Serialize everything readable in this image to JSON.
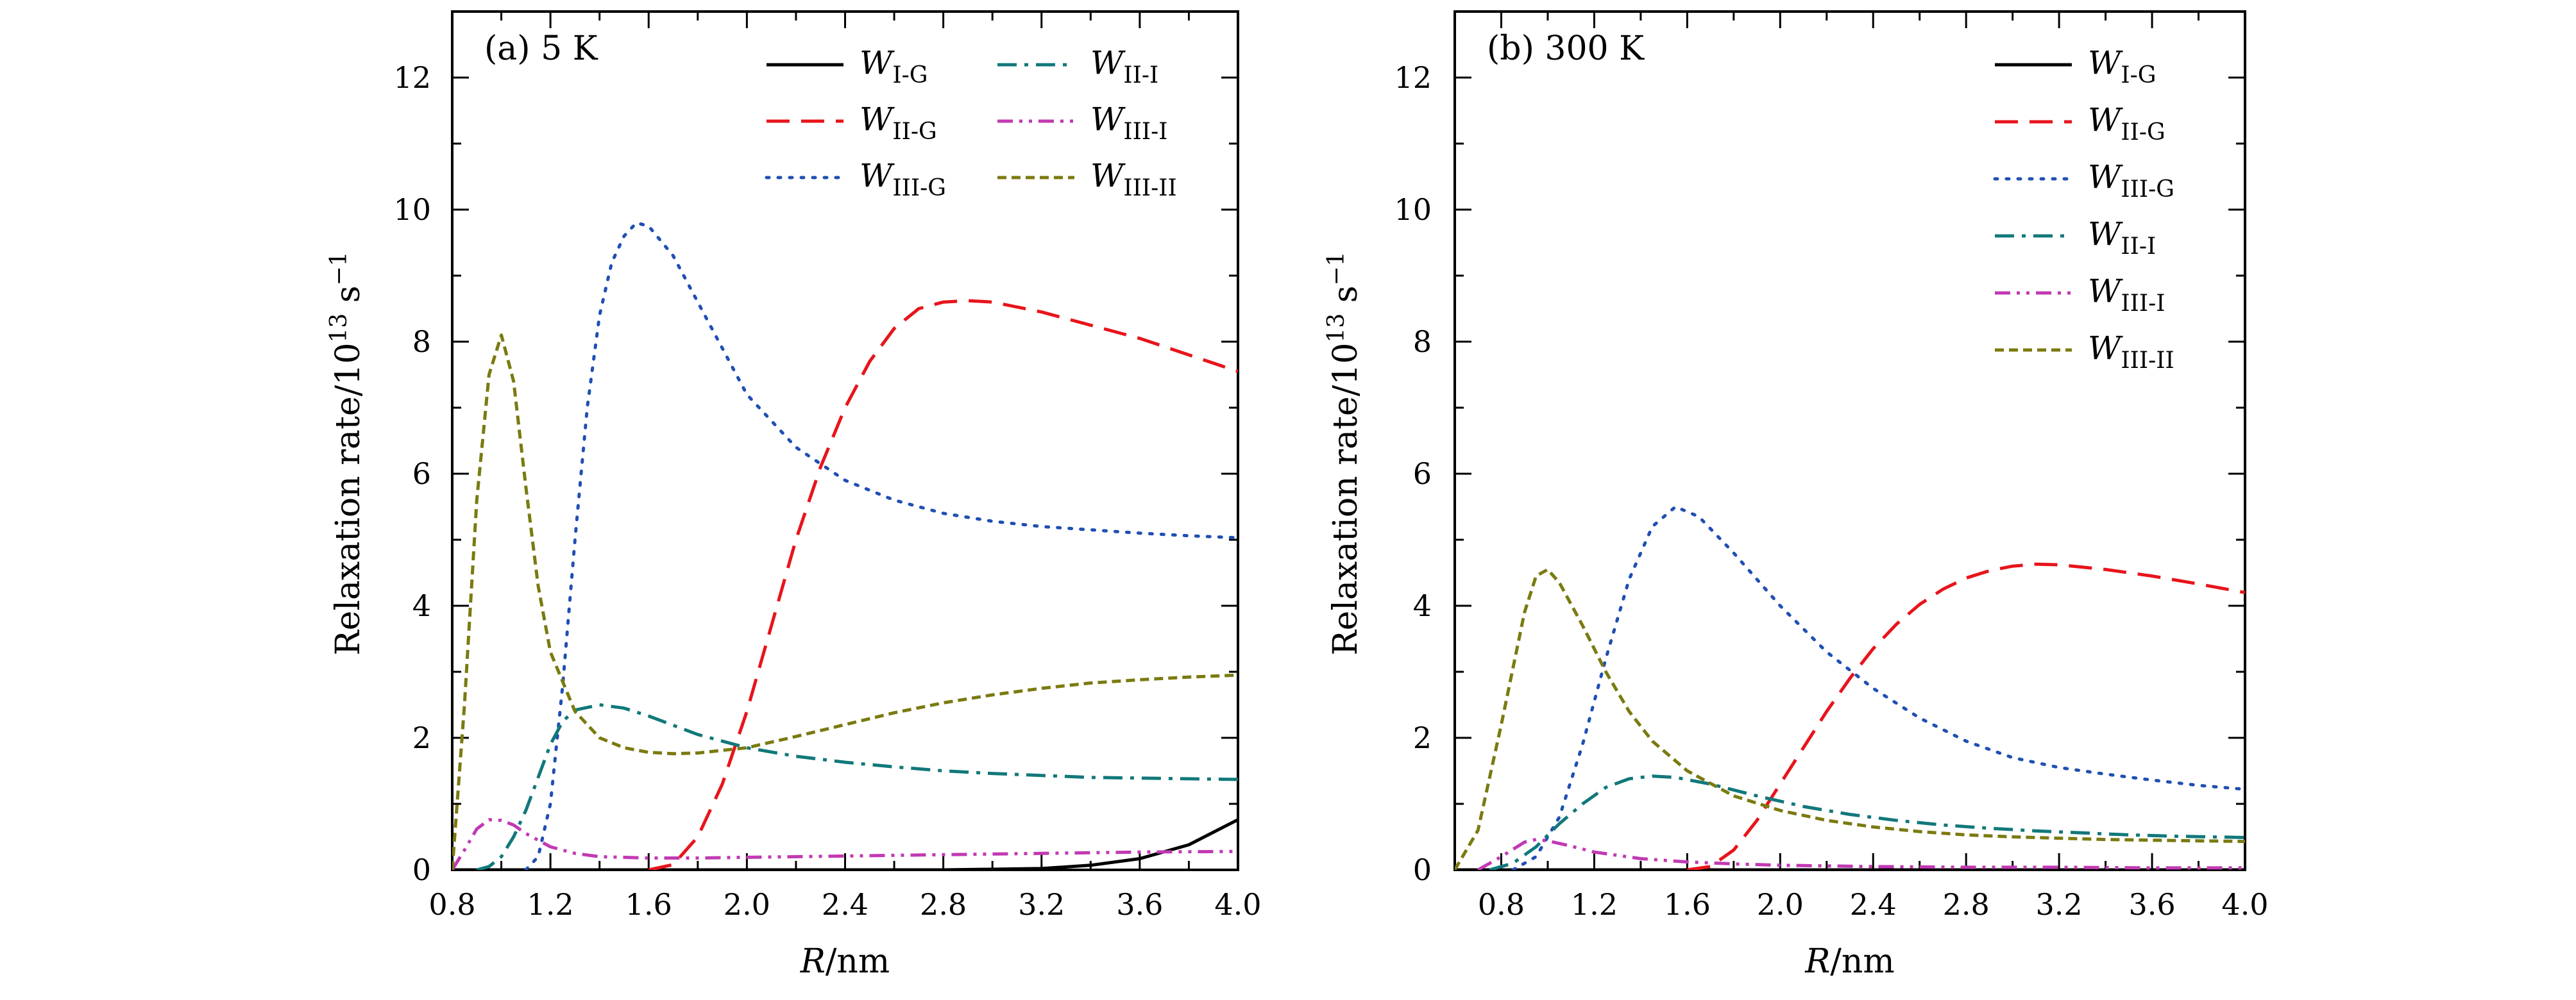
{
  "chart_data": [
    {
      "type": "line",
      "title": "(a) 5 K",
      "xlabel_var": "R",
      "xlabel_unit": "/nm",
      "ylabel_text": "Relaxation rate/10",
      "ylabel_exp": "13",
      "ylabel_unit": "s",
      "ylabel_unit_exp": "−1",
      "xlim": [
        0.8,
        4.0
      ],
      "ylim": [
        0,
        13
      ],
      "x_ticks": [
        "0.8",
        "1.2",
        "1.6",
        "2.0",
        "2.4",
        "2.8",
        "3.2",
        "3.6",
        "4.0"
      ],
      "y_ticks": [
        "0",
        "2",
        "4",
        "6",
        "8",
        "10",
        "12"
      ],
      "legend_position": "top-right, two columns",
      "series": [
        {
          "name": "W",
          "sub": "I-G",
          "color": "#000000",
          "style": "solid",
          "points": [
            [
              0.8,
              0
            ],
            [
              2.8,
              0
            ],
            [
              3.0,
              0.01
            ],
            [
              3.2,
              0.02
            ],
            [
              3.4,
              0.07
            ],
            [
              3.6,
              0.17
            ],
            [
              3.8,
              0.38
            ],
            [
              4.0,
              0.76
            ]
          ]
        },
        {
          "name": "W",
          "sub": "II-G",
          "color": "#e8141b",
          "style": "dashed",
          "points": [
            [
              1.6,
              0
            ],
            [
              1.7,
              0.08
            ],
            [
              1.8,
              0.5
            ],
            [
              1.9,
              1.3
            ],
            [
              2.0,
              2.4
            ],
            [
              2.1,
              3.7
            ],
            [
              2.2,
              5.0
            ],
            [
              2.3,
              6.1
            ],
            [
              2.4,
              7.0
            ],
            [
              2.5,
              7.7
            ],
            [
              2.6,
              8.2
            ],
            [
              2.7,
              8.5
            ],
            [
              2.8,
              8.6
            ],
            [
              2.9,
              8.62
            ],
            [
              3.0,
              8.6
            ],
            [
              3.2,
              8.45
            ],
            [
              3.4,
              8.25
            ],
            [
              3.6,
              8.05
            ],
            [
              3.8,
              7.8
            ],
            [
              4.0,
              7.55
            ]
          ]
        },
        {
          "name": "W",
          "sub": "III-G",
          "color": "#1f4fb4",
          "style": "dotted",
          "points": [
            [
              1.1,
              0
            ],
            [
              1.15,
              0.2
            ],
            [
              1.2,
              1.0
            ],
            [
              1.25,
              2.8
            ],
            [
              1.3,
              5.0
            ],
            [
              1.35,
              7.0
            ],
            [
              1.4,
              8.4
            ],
            [
              1.45,
              9.2
            ],
            [
              1.5,
              9.6
            ],
            [
              1.55,
              9.8
            ],
            [
              1.6,
              9.75
            ],
            [
              1.7,
              9.3
            ],
            [
              1.8,
              8.6
            ],
            [
              1.9,
              7.9
            ],
            [
              2.0,
              7.2
            ],
            [
              2.2,
              6.4
            ],
            [
              2.4,
              5.9
            ],
            [
              2.6,
              5.6
            ],
            [
              2.8,
              5.4
            ],
            [
              3.0,
              5.28
            ],
            [
              3.2,
              5.2
            ],
            [
              3.4,
              5.15
            ],
            [
              3.6,
              5.1
            ],
            [
              3.8,
              5.06
            ],
            [
              4.0,
              5.03
            ]
          ]
        },
        {
          "name": "W",
          "sub": "II-I",
          "color": "#11787a",
          "style": "dashdot",
          "points": [
            [
              0.9,
              0
            ],
            [
              0.95,
              0.05
            ],
            [
              1.0,
              0.2
            ],
            [
              1.05,
              0.5
            ],
            [
              1.1,
              0.9
            ],
            [
              1.15,
              1.4
            ],
            [
              1.2,
              1.9
            ],
            [
              1.25,
              2.25
            ],
            [
              1.3,
              2.42
            ],
            [
              1.4,
              2.5
            ],
            [
              1.5,
              2.45
            ],
            [
              1.6,
              2.33
            ],
            [
              1.8,
              2.05
            ],
            [
              2.0,
              1.85
            ],
            [
              2.2,
              1.72
            ],
            [
              2.4,
              1.63
            ],
            [
              2.6,
              1.56
            ],
            [
              2.8,
              1.5
            ],
            [
              3.0,
              1.46
            ],
            [
              3.2,
              1.43
            ],
            [
              3.4,
              1.4
            ],
            [
              3.6,
              1.39
            ],
            [
              3.8,
              1.38
            ],
            [
              4.0,
              1.37
            ]
          ]
        },
        {
          "name": "W",
          "sub": "III-I",
          "color": "#c239b3",
          "style": "dashdotdot",
          "points": [
            [
              0.8,
              0
            ],
            [
              0.85,
              0.3
            ],
            [
              0.9,
              0.62
            ],
            [
              0.95,
              0.76
            ],
            [
              1.0,
              0.75
            ],
            [
              1.05,
              0.68
            ],
            [
              1.1,
              0.55
            ],
            [
              1.2,
              0.35
            ],
            [
              1.3,
              0.25
            ],
            [
              1.4,
              0.2
            ],
            [
              1.6,
              0.18
            ],
            [
              1.8,
              0.18
            ],
            [
              2.0,
              0.19
            ],
            [
              2.4,
              0.21
            ],
            [
              2.8,
              0.23
            ],
            [
              3.2,
              0.25
            ],
            [
              3.6,
              0.27
            ],
            [
              4.0,
              0.28
            ]
          ]
        },
        {
          "name": "W",
          "sub": "III-II",
          "color": "#7a7a10",
          "style": "shortdash",
          "points": [
            [
              0.8,
              0
            ],
            [
              0.85,
              2.5
            ],
            [
              0.9,
              5.6
            ],
            [
              0.95,
              7.5
            ],
            [
              1.0,
              8.1
            ],
            [
              1.05,
              7.4
            ],
            [
              1.1,
              5.8
            ],
            [
              1.15,
              4.3
            ],
            [
              1.2,
              3.3
            ],
            [
              1.3,
              2.4
            ],
            [
              1.4,
              2.0
            ],
            [
              1.5,
              1.85
            ],
            [
              1.6,
              1.78
            ],
            [
              1.7,
              1.76
            ],
            [
              1.8,
              1.77
            ],
            [
              2.0,
              1.85
            ],
            [
              2.2,
              2.02
            ],
            [
              2.4,
              2.2
            ],
            [
              2.6,
              2.38
            ],
            [
              2.8,
              2.53
            ],
            [
              3.0,
              2.65
            ],
            [
              3.2,
              2.75
            ],
            [
              3.4,
              2.83
            ],
            [
              3.6,
              2.88
            ],
            [
              3.8,
              2.92
            ],
            [
              4.0,
              2.95
            ]
          ]
        }
      ]
    },
    {
      "type": "line",
      "title": "(b) 300 K",
      "xlabel_var": "R",
      "xlabel_unit": "/nm",
      "ylabel_text": "Relaxation rate/10",
      "ylabel_exp": "13",
      "ylabel_unit": "s",
      "ylabel_unit_exp": "−1",
      "xlim": [
        0.6,
        4.0
      ],
      "ylim": [
        0,
        13
      ],
      "x_ticks": [
        "0.8",
        "1.2",
        "1.6",
        "2.0",
        "2.4",
        "2.8",
        "3.2",
        "3.6",
        "4.0"
      ],
      "y_ticks": [
        "0",
        "2",
        "4",
        "6",
        "8",
        "10",
        "12"
      ],
      "legend_position": "top-right, one column",
      "series": [
        {
          "name": "W",
          "sub": "I-G",
          "color": "#000000",
          "style": "solid",
          "points": [
            [
              0.6,
              0
            ],
            [
              4.0,
              0
            ]
          ]
        },
        {
          "name": "W",
          "sub": "II-G",
          "color": "#e8141b",
          "style": "dashed",
          "points": [
            [
              1.6,
              0
            ],
            [
              1.7,
              0.05
            ],
            [
              1.8,
              0.3
            ],
            [
              1.9,
              0.75
            ],
            [
              2.0,
              1.3
            ],
            [
              2.1,
              1.85
            ],
            [
              2.2,
              2.4
            ],
            [
              2.3,
              2.9
            ],
            [
              2.4,
              3.35
            ],
            [
              2.5,
              3.72
            ],
            [
              2.6,
              4.02
            ],
            [
              2.7,
              4.25
            ],
            [
              2.8,
              4.42
            ],
            [
              2.9,
              4.53
            ],
            [
              3.0,
              4.6
            ],
            [
              3.1,
              4.63
            ],
            [
              3.2,
              4.62
            ],
            [
              3.4,
              4.55
            ],
            [
              3.6,
              4.45
            ],
            [
              3.8,
              4.33
            ],
            [
              4.0,
              4.2
            ]
          ]
        },
        {
          "name": "W",
          "sub": "III-G",
          "color": "#1f4fb4",
          "style": "dotted",
          "points": [
            [
              0.85,
              0
            ],
            [
              0.95,
              0.2
            ],
            [
              1.05,
              0.8
            ],
            [
              1.15,
              1.9
            ],
            [
              1.25,
              3.2
            ],
            [
              1.35,
              4.4
            ],
            [
              1.45,
              5.2
            ],
            [
              1.55,
              5.5
            ],
            [
              1.65,
              5.35
            ],
            [
              1.8,
              4.8
            ],
            [
              2.0,
              4.0
            ],
            [
              2.2,
              3.3
            ],
            [
              2.4,
              2.75
            ],
            [
              2.6,
              2.3
            ],
            [
              2.8,
              1.95
            ],
            [
              3.0,
              1.7
            ],
            [
              3.2,
              1.55
            ],
            [
              3.4,
              1.45
            ],
            [
              3.6,
              1.36
            ],
            [
              3.8,
              1.28
            ],
            [
              4.0,
              1.22
            ]
          ]
        },
        {
          "name": "W",
          "sub": "II-I",
          "color": "#11787a",
          "style": "dashdot",
          "points": [
            [
              0.75,
              0
            ],
            [
              0.85,
              0.1
            ],
            [
              0.95,
              0.35
            ],
            [
              1.05,
              0.7
            ],
            [
              1.15,
              1.0
            ],
            [
              1.25,
              1.25
            ],
            [
              1.35,
              1.38
            ],
            [
              1.45,
              1.42
            ],
            [
              1.55,
              1.4
            ],
            [
              1.7,
              1.3
            ],
            [
              1.9,
              1.12
            ],
            [
              2.1,
              0.96
            ],
            [
              2.3,
              0.84
            ],
            [
              2.5,
              0.75
            ],
            [
              2.7,
              0.68
            ],
            [
              2.9,
              0.63
            ],
            [
              3.1,
              0.59
            ],
            [
              3.3,
              0.56
            ],
            [
              3.5,
              0.53
            ],
            [
              3.7,
              0.51
            ],
            [
              4.0,
              0.49
            ]
          ]
        },
        {
          "name": "W",
          "sub": "III-I",
          "color": "#c239b3",
          "style": "dashdotdot",
          "points": [
            [
              0.7,
              0
            ],
            [
              0.8,
              0.2
            ],
            [
              0.9,
              0.42
            ],
            [
              0.95,
              0.46
            ],
            [
              1.0,
              0.44
            ],
            [
              1.1,
              0.36
            ],
            [
              1.2,
              0.27
            ],
            [
              1.4,
              0.17
            ],
            [
              1.6,
              0.12
            ],
            [
              1.8,
              0.09
            ],
            [
              2.0,
              0.07
            ],
            [
              2.4,
              0.05
            ],
            [
              2.8,
              0.04
            ],
            [
              3.2,
              0.04
            ],
            [
              3.6,
              0.03
            ],
            [
              4.0,
              0.03
            ]
          ]
        },
        {
          "name": "W",
          "sub": "III-II",
          "color": "#7a7a10",
          "style": "shortdash",
          "points": [
            [
              0.6,
              0
            ],
            [
              0.7,
              0.6
            ],
            [
              0.8,
              2.2
            ],
            [
              0.9,
              3.9
            ],
            [
              0.95,
              4.45
            ],
            [
              1.0,
              4.55
            ],
            [
              1.05,
              4.35
            ],
            [
              1.15,
              3.7
            ],
            [
              1.25,
              3.0
            ],
            [
              1.35,
              2.4
            ],
            [
              1.45,
              1.95
            ],
            [
              1.6,
              1.5
            ],
            [
              1.8,
              1.12
            ],
            [
              2.0,
              0.9
            ],
            [
              2.2,
              0.75
            ],
            [
              2.4,
              0.65
            ],
            [
              2.6,
              0.58
            ],
            [
              2.8,
              0.53
            ],
            [
              3.0,
              0.5
            ],
            [
              3.2,
              0.48
            ],
            [
              3.4,
              0.46
            ],
            [
              3.6,
              0.45
            ],
            [
              3.8,
              0.44
            ],
            [
              4.0,
              0.43
            ]
          ]
        }
      ]
    }
  ]
}
